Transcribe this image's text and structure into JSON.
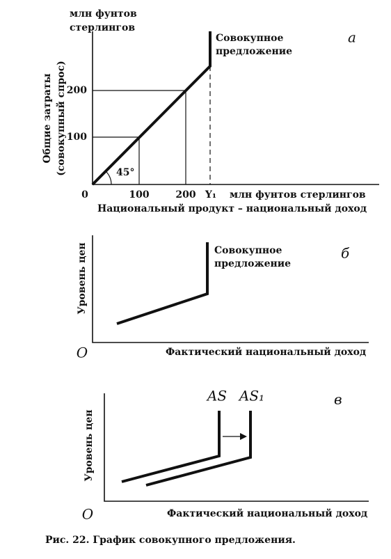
{
  "panels": [
    {
      "label": "а",
      "y_axis_unit": [
        "млн фунтов",
        "стерлингов"
      ],
      "y_axis_title": [
        "Общие затраты",
        "(совокупный спрос)"
      ],
      "y_ticks": [
        "100",
        "200"
      ],
      "origin": "0",
      "x_ticks": [
        "100",
        "200",
        "Y₁"
      ],
      "x_axis_unit": "млн фунтов стерлингов",
      "x_axis_title": "Национальный продукт – национальный доход",
      "curve_label": [
        "Совокупное",
        "предложение"
      ],
      "angle": "45°"
    },
    {
      "label": "б",
      "y_axis_title": "Уровень цен",
      "origin": "О",
      "x_axis_title": "Фактический национальный доход",
      "curve_label": [
        "Совокупное",
        "предложение"
      ]
    },
    {
      "label": "в",
      "y_axis_title": "Уровень цен",
      "origin": "О",
      "x_axis_title": "Фактический национальный доход",
      "curve_labels": [
        "AS",
        "AS₁"
      ]
    }
  ],
  "caption": "Рис. 22. График совокупного предложения."
}
